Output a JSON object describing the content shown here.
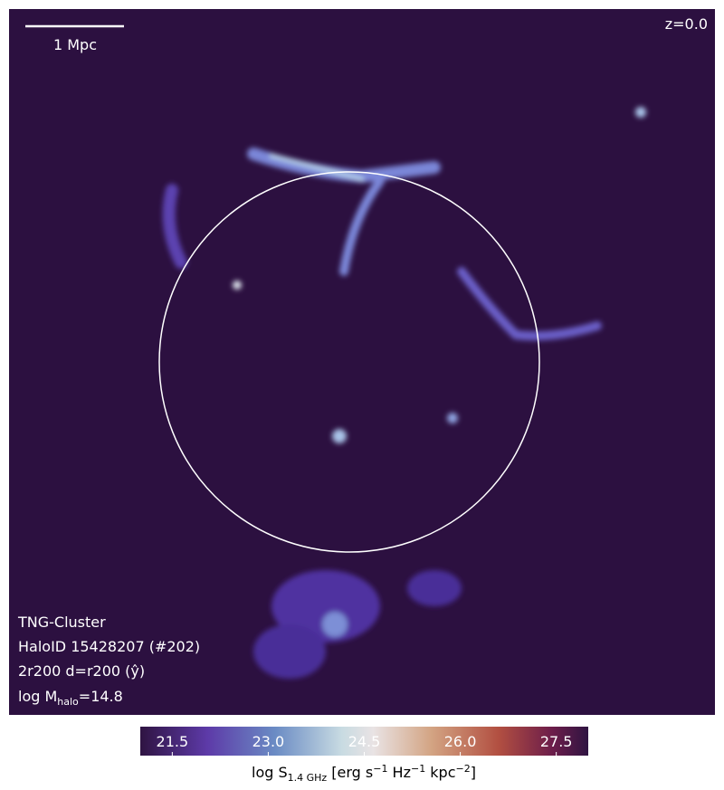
{
  "scale_bar": {
    "label": "1 Mpc"
  },
  "redshift": "z=0.0",
  "info": {
    "simulation": "TNG-Cluster",
    "halo_id": "HaloID 15428207 (#202)",
    "projection": "2r200 d=r200 (ŷ)",
    "mass": {
      "prefix": "log M",
      "subscript": "halo",
      "suffix": "=14.8"
    }
  },
  "colorbar": {
    "range": [
      21,
      28
    ],
    "ticks": [
      21.5,
      {
        "value": 23,
        "label": "23.0"
      },
      24.5,
      {
        "value": 26,
        "label": "26.0"
      },
      27.5
    ],
    "label": {
      "base": "log S",
      "sub": "1.4 GHz",
      "p1": " [erg s",
      "e1": "−1",
      "p2": " Hz",
      "e2": "−1",
      "p3": " kpc",
      "e3": "−2",
      "p4": "]"
    }
  }
}
